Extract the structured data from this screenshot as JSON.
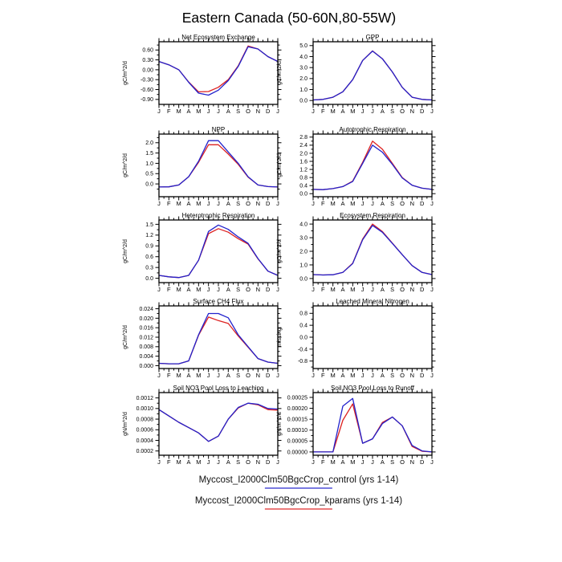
{
  "page_title": "Eastern Canada (50-60N,80-55W)",
  "legend": [
    {
      "name": "control",
      "label": "Myccost_I2000Clm50BgcCrop_control (yrs 1-14)",
      "color": "#2222cc"
    },
    {
      "name": "kparams",
      "label": "Myccost_I2000Clm50BgcCrop_kparams (yrs 1-14)",
      "color": "#dd2222"
    }
  ],
  "colors": {
    "control": "#2222cc",
    "kparams": "#dd2222",
    "axis": "#000000"
  },
  "chart_data": [
    {
      "type": "line",
      "slug": "net-ecosystem-exchange",
      "title": "Net Ecosystem Exchange",
      "ylabel": "gC/m^2/d",
      "categories": [
        "J",
        "F",
        "M",
        "A",
        "M",
        "J",
        "J",
        "A",
        "S",
        "O",
        "N",
        "D",
        "J"
      ],
      "ylim": [
        -1.05,
        0.85
      ],
      "ytick_vals": [
        -0.9,
        -0.6,
        -0.3,
        0.0,
        0.3,
        0.6
      ],
      "ytick_labels": [
        "-0.90",
        "-0.60",
        "-0.30",
        "0.00",
        "0.30",
        "0.60"
      ],
      "series": [
        {
          "name": "control",
          "color": "#2222cc",
          "values": [
            0.25,
            0.15,
            0.0,
            -0.38,
            -0.71,
            -0.77,
            -0.62,
            -0.33,
            0.1,
            0.7,
            0.63,
            0.4,
            0.25
          ]
        },
        {
          "name": "kparams",
          "color": "#dd2222",
          "values": [
            0.25,
            0.15,
            0.0,
            -0.37,
            -0.67,
            -0.66,
            -0.53,
            -0.3,
            0.12,
            0.72,
            0.63,
            0.4,
            0.25
          ]
        }
      ]
    },
    {
      "type": "line",
      "slug": "gpp",
      "title": "GPP",
      "ylabel": "gC/m^2/d",
      "categories": [
        "J",
        "F",
        "M",
        "A",
        "M",
        "J",
        "J",
        "A",
        "S",
        "O",
        "N",
        "D",
        "J"
      ],
      "ylim": [
        -0.35,
        5.35
      ],
      "ytick_vals": [
        0.0,
        1.0,
        2.0,
        3.0,
        4.0,
        5.0
      ],
      "ytick_labels": [
        "0.0",
        "1.0",
        "2.0",
        "3.0",
        "4.0",
        "5.0"
      ],
      "series": [
        {
          "name": "control",
          "color": "#2222cc",
          "values": [
            0.05,
            0.1,
            0.3,
            0.8,
            1.9,
            3.65,
            4.5,
            3.8,
            2.6,
            1.2,
            0.3,
            0.1,
            0.05
          ]
        },
        {
          "name": "kparams",
          "color": "#dd2222",
          "values": [
            0.05,
            0.1,
            0.3,
            0.8,
            1.9,
            3.65,
            4.52,
            3.8,
            2.6,
            1.2,
            0.3,
            0.1,
            0.05
          ]
        }
      ]
    },
    {
      "type": "line",
      "slug": "npp",
      "title": "NPP",
      "ylabel": "gC/m^2/d",
      "categories": [
        "J",
        "F",
        "M",
        "A",
        "M",
        "J",
        "J",
        "A",
        "S",
        "O",
        "N",
        "D",
        "J"
      ],
      "ylim": [
        -0.62,
        2.42
      ],
      "ytick_vals": [
        0.0,
        0.5,
        1.0,
        1.5,
        2.0
      ],
      "ytick_labels": [
        "0.0",
        "0.5",
        "1.0",
        "1.5",
        "2.0"
      ],
      "series": [
        {
          "name": "control",
          "color": "#2222cc",
          "values": [
            -0.15,
            -0.14,
            -0.05,
            0.35,
            1.1,
            2.1,
            2.1,
            1.55,
            1.0,
            0.35,
            -0.05,
            -0.13,
            -0.15
          ]
        },
        {
          "name": "kparams",
          "color": "#dd2222",
          "values": [
            -0.15,
            -0.14,
            -0.05,
            0.35,
            1.05,
            1.9,
            1.9,
            1.45,
            0.95,
            0.33,
            -0.05,
            -0.13,
            -0.15
          ]
        }
      ]
    },
    {
      "type": "line",
      "slug": "autotrophic-respiration",
      "title": "Autotrophic Respiration",
      "ylabel": "gC/m^2/d",
      "categories": [
        "J",
        "F",
        "M",
        "A",
        "M",
        "J",
        "J",
        "A",
        "S",
        "O",
        "N",
        "D",
        "J"
      ],
      "ylim": [
        -0.15,
        2.95
      ],
      "ytick_vals": [
        0.0,
        0.4,
        0.8,
        1.2,
        1.6,
        2.0,
        2.4,
        2.8
      ],
      "ytick_labels": [
        "0.0",
        "0.4",
        "0.8",
        "1.2",
        "1.6",
        "2.0",
        "2.4",
        "2.8"
      ],
      "series": [
        {
          "name": "control",
          "color": "#2222cc",
          "values": [
            0.21,
            0.2,
            0.25,
            0.35,
            0.6,
            1.5,
            2.4,
            2.05,
            1.45,
            0.78,
            0.42,
            0.27,
            0.21
          ]
        },
        {
          "name": "kparams",
          "color": "#dd2222",
          "values": [
            0.21,
            0.2,
            0.25,
            0.35,
            0.62,
            1.55,
            2.6,
            2.2,
            1.5,
            0.8,
            0.42,
            0.27,
            0.21
          ]
        }
      ]
    },
    {
      "type": "line",
      "slug": "heterotrophic-respiration",
      "title": "Heterotrophic Respiration",
      "ylabel": "gC/m^2/d",
      "categories": [
        "J",
        "F",
        "M",
        "A",
        "M",
        "J",
        "J",
        "A",
        "S",
        "O",
        "N",
        "D",
        "J"
      ],
      "ylim": [
        -0.12,
        1.62
      ],
      "ytick_vals": [
        0.0,
        0.3,
        0.6,
        0.9,
        1.2,
        1.5
      ],
      "ytick_labels": [
        "0.0",
        "0.3",
        "0.6",
        "0.9",
        "1.2",
        "1.5"
      ],
      "series": [
        {
          "name": "control",
          "color": "#2222cc",
          "values": [
            0.08,
            0.04,
            0.02,
            0.08,
            0.5,
            1.3,
            1.48,
            1.36,
            1.15,
            0.97,
            0.55,
            0.2,
            0.08
          ]
        },
        {
          "name": "kparams",
          "color": "#dd2222",
          "values": [
            0.08,
            0.04,
            0.02,
            0.08,
            0.5,
            1.24,
            1.38,
            1.28,
            1.1,
            0.95,
            0.54,
            0.2,
            0.08
          ]
        }
      ]
    },
    {
      "type": "line",
      "slug": "ecosystem-respiration",
      "title": "Ecosystem Respiration",
      "ylabel": "gC/m^2/d",
      "categories": [
        "J",
        "F",
        "M",
        "A",
        "M",
        "J",
        "J",
        "A",
        "S",
        "O",
        "N",
        "D",
        "J"
      ],
      "ylim": [
        -0.3,
        4.3
      ],
      "ytick_vals": [
        0.0,
        1.0,
        2.0,
        3.0,
        4.0
      ],
      "ytick_labels": [
        "0.0",
        "1.0",
        "2.0",
        "3.0",
        "4.0"
      ],
      "series": [
        {
          "name": "control",
          "color": "#2222cc",
          "values": [
            0.29,
            0.26,
            0.28,
            0.45,
            1.1,
            2.85,
            3.9,
            3.4,
            2.58,
            1.75,
            0.95,
            0.45,
            0.29
          ]
        },
        {
          "name": "kparams",
          "color": "#dd2222",
          "values": [
            0.29,
            0.26,
            0.28,
            0.45,
            1.12,
            2.9,
            4.0,
            3.45,
            2.6,
            1.75,
            0.95,
            0.45,
            0.29
          ]
        }
      ]
    },
    {
      "type": "line",
      "slug": "surface-ch4-flux",
      "title": "Surface CH4 Flux",
      "ylabel": "gC/m^2/d",
      "categories": [
        "J",
        "F",
        "M",
        "A",
        "M",
        "J",
        "J",
        "A",
        "S",
        "O",
        "N",
        "D",
        "J"
      ],
      "ylim": [
        -0.0012,
        0.0252
      ],
      "ytick_vals": [
        0.0,
        0.004,
        0.008,
        0.012,
        0.016,
        0.02,
        0.024
      ],
      "ytick_labels": [
        "0.000",
        "0.004",
        "0.008",
        "0.012",
        "0.016",
        "0.020",
        "0.024"
      ],
      "series": [
        {
          "name": "control",
          "color": "#2222cc",
          "values": [
            0.001,
            0.0008,
            0.0008,
            0.002,
            0.013,
            0.022,
            0.022,
            0.0202,
            0.013,
            0.008,
            0.003,
            0.0015,
            0.001
          ]
        },
        {
          "name": "kparams",
          "color": "#dd2222",
          "values": [
            0.001,
            0.0008,
            0.0008,
            0.002,
            0.0128,
            0.0205,
            0.019,
            0.0178,
            0.0125,
            0.0078,
            0.003,
            0.0015,
            0.001
          ]
        }
      ]
    },
    {
      "type": "line",
      "slug": "leached-mineral-nitrogen",
      "title": "Leached Mineral Nitrogen",
      "ylabel": "missing",
      "categories": [
        "J",
        "F",
        "M",
        "A",
        "M",
        "J",
        "J",
        "A",
        "S",
        "O",
        "N",
        "D",
        "J"
      ],
      "ylim": [
        -1.05,
        1.05
      ],
      "ytick_vals": [
        -0.8,
        -0.4,
        0.0,
        0.4,
        0.8
      ],
      "ytick_labels": [
        "-0.8",
        "-0.4",
        "0.0",
        "0.4",
        "0.8"
      ],
      "series": []
    },
    {
      "type": "line",
      "slug": "soil-no3-pool-loss-to-leaching",
      "title": "Soil NO3 Pool Loss to Leaching",
      "ylabel": "gN/m^2/d",
      "categories": [
        "J",
        "F",
        "M",
        "A",
        "M",
        "J",
        "J",
        "A",
        "S",
        "O",
        "N",
        "D",
        "J"
      ],
      "ylim": [
        0.00012,
        0.0013
      ],
      "ytick_vals": [
        0.0002,
        0.0004,
        0.0006,
        0.0008,
        0.001,
        0.0012
      ],
      "ytick_labels": [
        "0.0002",
        "0.0004",
        "0.0006",
        "0.0008",
        "0.0010",
        "0.0012"
      ],
      "series": [
        {
          "name": "control",
          "color": "#2222cc",
          "values": [
            0.00098,
            0.00086,
            0.00074,
            0.00064,
            0.00054,
            0.00038,
            0.00048,
            0.0008,
            0.00102,
            0.0011,
            0.00108,
            0.001,
            0.00099
          ]
        },
        {
          "name": "kparams",
          "color": "#dd2222",
          "values": [
            0.00098,
            0.00086,
            0.00074,
            0.00064,
            0.00054,
            0.00038,
            0.00048,
            0.0008,
            0.00101,
            0.0011,
            0.00107,
            0.00098,
            0.00097
          ]
        }
      ]
    },
    {
      "type": "line",
      "slug": "soil-no3-pool-loss-to-runoff",
      "title": "Soil NO3 Pool Loss to Runoff",
      "ylabel": "gN/m^2/d",
      "categories": [
        "J",
        "F",
        "M",
        "A",
        "M",
        "J",
        "J",
        "A",
        "S",
        "O",
        "N",
        "D",
        "J"
      ],
      "ylim": [
        -1.5e-05,
        0.000272
      ],
      "ytick_vals": [
        0.0,
        5e-05,
        0.0001,
        0.00015,
        0.0002,
        0.00025
      ],
      "ytick_labels": [
        "0.00000",
        "0.00005",
        "0.00010",
        "0.00015",
        "0.00020",
        "0.00025"
      ],
      "series": [
        {
          "name": "control",
          "color": "#2222cc",
          "values": [
            0.0,
            0.0,
            0.0,
            0.00021,
            0.000245,
            4e-05,
            6e-05,
            0.00013,
            0.00016,
            0.00012,
            3e-05,
            5e-06,
            0.0
          ]
        },
        {
          "name": "kparams",
          "color": "#dd2222",
          "values": [
            0.0,
            0.0,
            0.0,
            0.000145,
            0.00022,
            4e-05,
            6e-05,
            0.000135,
            0.00016,
            0.00012,
            2.5e-05,
            3e-06,
            0.0
          ]
        }
      ]
    }
  ]
}
